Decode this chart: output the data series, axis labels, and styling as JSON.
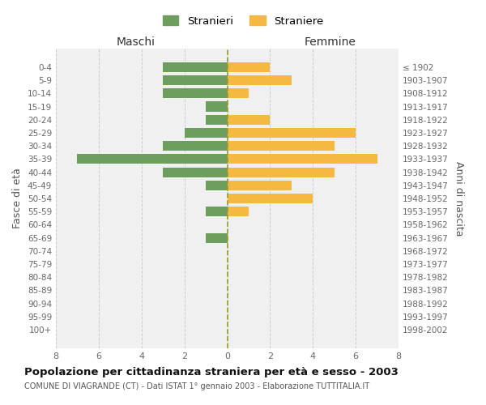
{
  "age_groups": [
    "0-4",
    "5-9",
    "10-14",
    "15-19",
    "20-24",
    "25-29",
    "30-34",
    "35-39",
    "40-44",
    "45-49",
    "50-54",
    "55-59",
    "60-64",
    "65-69",
    "70-74",
    "75-79",
    "80-84",
    "85-89",
    "90-94",
    "95-99",
    "100+"
  ],
  "birth_years": [
    "1998-2002",
    "1993-1997",
    "1988-1992",
    "1983-1987",
    "1978-1982",
    "1973-1977",
    "1968-1972",
    "1963-1967",
    "1958-1962",
    "1953-1957",
    "1948-1952",
    "1943-1947",
    "1938-1942",
    "1933-1937",
    "1928-1932",
    "1923-1927",
    "1918-1922",
    "1913-1917",
    "1908-1912",
    "1903-1907",
    "≤ 1902"
  ],
  "males": [
    3,
    3,
    3,
    1,
    1,
    2,
    3,
    7,
    3,
    1,
    0,
    1,
    0,
    1,
    0,
    0,
    0,
    0,
    0,
    0,
    0
  ],
  "females": [
    2,
    3,
    1,
    0,
    2,
    6,
    5,
    7,
    5,
    3,
    4,
    1,
    0,
    0,
    0,
    0,
    0,
    0,
    0,
    0,
    0
  ],
  "male_color": "#6e9e5e",
  "female_color": "#f5b942",
  "title": "Popolazione per cittadinanza straniera per età e sesso - 2003",
  "subtitle": "COMUNE DI VIAGRANDE (CT) - Dati ISTAT 1° gennaio 2003 - Elaborazione TUTTITALIA.IT",
  "ylabel_left": "Fasce di età",
  "ylabel_right": "Anni di nascita",
  "xlabel_left": "Maschi",
  "xlabel_right": "Femmine",
  "legend_male": "Stranieri",
  "legend_female": "Straniere",
  "xlim": 8,
  "background_color": "#f0f0f0",
  "grid_color": "#cccccc"
}
